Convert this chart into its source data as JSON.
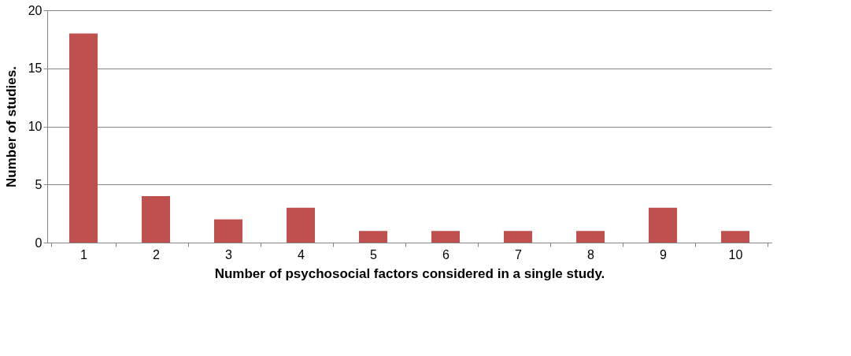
{
  "chart_data": {
    "type": "bar",
    "xlabel": "Number of psychosocial factors considered in a single study.",
    "ylabel": "Number of studies.",
    "categories": [
      "1",
      "2",
      "3",
      "4",
      "5",
      "6",
      "7",
      "8",
      "9",
      "10"
    ],
    "series": [
      {
        "color": "#c0504d",
        "values": [
          18,
          4,
          2,
          3,
          1,
          1,
          1,
          1,
          3,
          1
        ]
      }
    ],
    "ylim": [
      0,
      20
    ],
    "yticks": [
      0,
      5,
      10,
      15,
      20
    ],
    "grid": "y",
    "legend": false
  }
}
